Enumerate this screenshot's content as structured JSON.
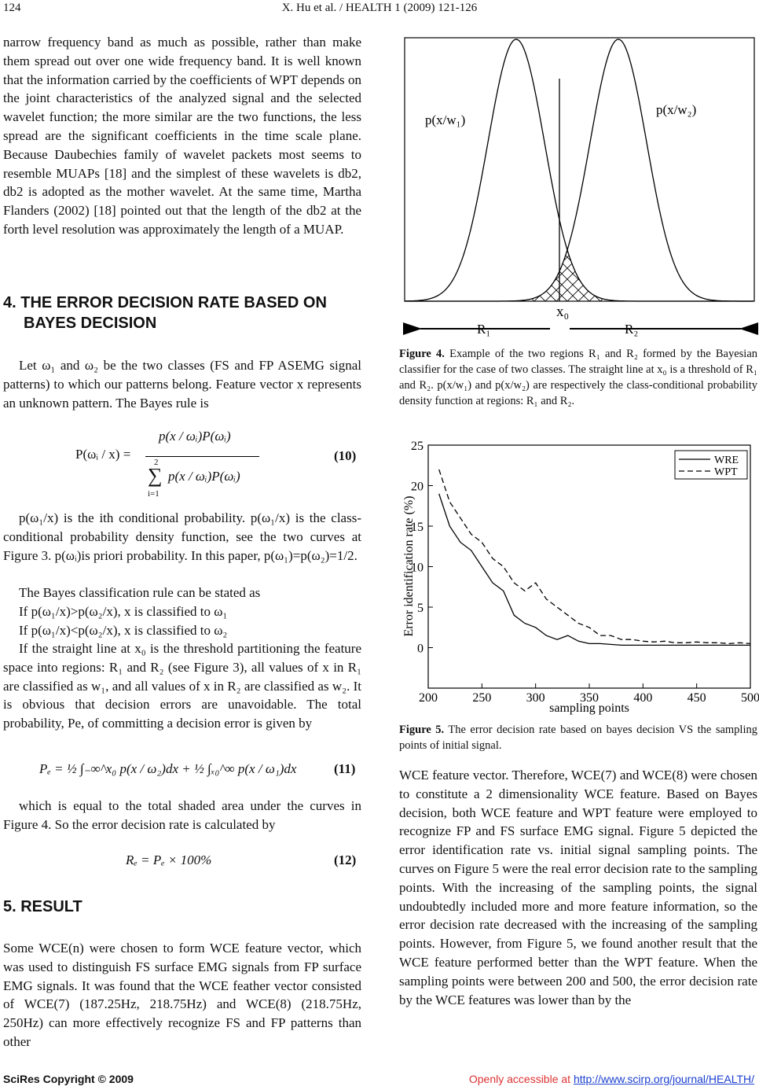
{
  "header": {
    "page": "124",
    "running_title": "X. Hu et al. / HEALTH 1 (2009) 121-126"
  },
  "left": {
    "p1": "narrow frequency band as much as possible, rather than make them spread out over one wide frequency band. It is well known that the information carried by the coefficients of WPT depends on the joint characteristics of the analyzed signal and the selected wavelet function; the more similar are the two functions, the less spread are the significant coefficients in the time scale plane. Because Daubechies family of wavelet packets most seems to resemble MUAPs [18] and the simplest of these wavelets is db2, db2 is adopted as the mother wavelet. At the same time, Martha Flanders (2002) [18] pointed out that the length of the db2 at the forth level resolution was approximately the length of a MUAP.",
    "section4": "4. THE ERROR DECISION RATE BASED ON BAYES DECISION",
    "p2": "Let ω₁ and ω₂ be the two classes (FS and FP ASEMG signal patterns) to which our patterns belong. Feature vector x represents an unknown pattern. The Bayes rule is",
    "eq10": {
      "lhs": "P(ωᵢ / x) =",
      "numerator": "p(x / ωᵢ)P(ωᵢ)",
      "sum_upper": "2",
      "sum": "∑",
      "sum_lower": "i=1",
      "denominator": "p(x / ωᵢ)P(ωᵢ)",
      "number": "(10)"
    },
    "p3": "p(ω₁/x) is the ith conditional probability. p(ω₁/x) is the class-conditional probability density function, see the two curves at Figure 3. p(ωᵢ)is priori probability. In this paper, p(ω₁)=p(ω₂)=1/2.",
    "rule_intro": "The Bayes classification rule can be stated as",
    "rule1": "If p(ω₁/x)>p(ω₂/x), x is classified to ω₁",
    "rule2": "If p(ω₁/x)<p(ω₂/x), x is classified to ω₂",
    "p4": "If the straight line at x₀ is the threshold partitioning the feature space into regions: R₁ and R₂ (see Figure 3), all values of x in R₁ are classified as w₁, and all values of x in R₂ are classified as w₂. It is obvious that decision errors are unavoidable. The total probability, Pe, of committing a decision error is given by",
    "eq11": {
      "formula": "Pₑ = ½ ∫₋∞^x₀ p(x / ω₂)dx + ½ ∫ₓ₀^∞ p(x / ω₁)dx",
      "number": "(11)"
    },
    "p5": "which is equal to the total shaded area under the curves in Figure 4. So the error decision rate is calculated by",
    "eq12": {
      "formula": "Rₑ = Pₑ × 100%",
      "number": "(12)"
    },
    "section5": "5. RESULT",
    "p6": "Some WCE(n) were chosen to form WCE feature vector, which was used to distinguish FS surface EMG signals from FP surface EMG signals. It was found that the WCE feather vector consisted of WCE(7) (187.25Hz, 218.75Hz) and WCE(8) (218.75Hz, 250Hz) can more effectively recognize FS and FP patterns than other"
  },
  "figure4": {
    "label_w1": "p(x/w₁)",
    "label_w2": "p(x/w₂)",
    "label_x0": "x₀",
    "label_r1": "R₁",
    "label_r2": "R₂",
    "caption_label": "Figure 4.",
    "caption": "Example of the two regions R₁ and R₂ formed by the Bayesian classifier for the case of two classes. The straight line at x₀ is a threshold of R₁ and R₂. p(x/w₁) and p(x/w₂) are respectively the class-conditional probability density function at regions: R₁ and R₂."
  },
  "figure5": {
    "chart_data": {
      "type": "line",
      "ylabel": "Error identification rate (%)",
      "xlabel": "sampling points",
      "x": [
        210,
        220,
        230,
        240,
        250,
        260,
        270,
        280,
        290,
        300,
        310,
        320,
        330,
        340,
        350,
        360,
        370,
        380,
        390,
        400,
        410,
        420,
        430,
        440,
        450,
        460,
        470,
        480,
        490,
        500
      ],
      "series": [
        {
          "name": "WRE",
          "color": "#000000",
          "dash": "solid",
          "values": [
            19,
            15,
            13,
            12,
            10,
            8,
            7,
            4,
            3,
            2.5,
            1.5,
            1,
            1.5,
            0.8,
            0.5,
            0.5,
            0.4,
            0.3,
            0.3,
            0.3,
            0.3,
            0.3,
            0.3,
            0.3,
            0.3,
            0.3,
            0.3,
            0.3,
            0.3,
            0.3
          ]
        },
        {
          "name": "WPT",
          "color": "#000000",
          "dash": "dashed",
          "values": [
            22,
            18,
            16,
            14,
            13,
            11,
            10,
            8,
            7,
            8,
            6,
            5,
            4,
            3,
            2.5,
            1.5,
            1.5,
            1,
            1,
            0.8,
            0.7,
            0.8,
            0.6,
            0.6,
            0.7,
            0.6,
            0.6,
            0.5,
            0.6,
            0.5
          ]
        }
      ],
      "xlim": [
        200,
        500
      ],
      "xticks": [
        200,
        250,
        300,
        350,
        400,
        450,
        500
      ],
      "ylim": [
        -5,
        25
      ],
      "yticks": [
        0,
        5,
        10,
        15,
        20,
        25
      ],
      "legend": "top-right"
    },
    "caption_label": "Figure 5.",
    "caption": "The error decision rate based on bayes decision VS the sampling points of initial signal."
  },
  "right": {
    "p1": "WCE feature vector. Therefore, WCE(7) and WCE(8) were chosen to constitute a 2 dimensionality WCE feature. Based on Bayes decision, both WCE feature and WPT feature were employed to recognize FP and FS surface EMG signal. Figure 5 depicted the error identification rate vs. initial signal sampling points. The curves on Figure 5 were the real error decision rate to the sampling points. With the increasing of the sampling points, the signal undoubtedly included more and more feature information, so the error decision rate decreased with the increasing of the sampling points. However, from Figure 5, we found another result that the WCE feature performed better than the WPT feature. When the sampling points were between 200 and 500, the error decision rate by the WCE features was lower than by the"
  },
  "footer": {
    "copyright": "SciRes Copyright © 2009",
    "access": "Openly accessible at",
    "url": "http://www.scirp.org/journal/HEALTH/"
  }
}
